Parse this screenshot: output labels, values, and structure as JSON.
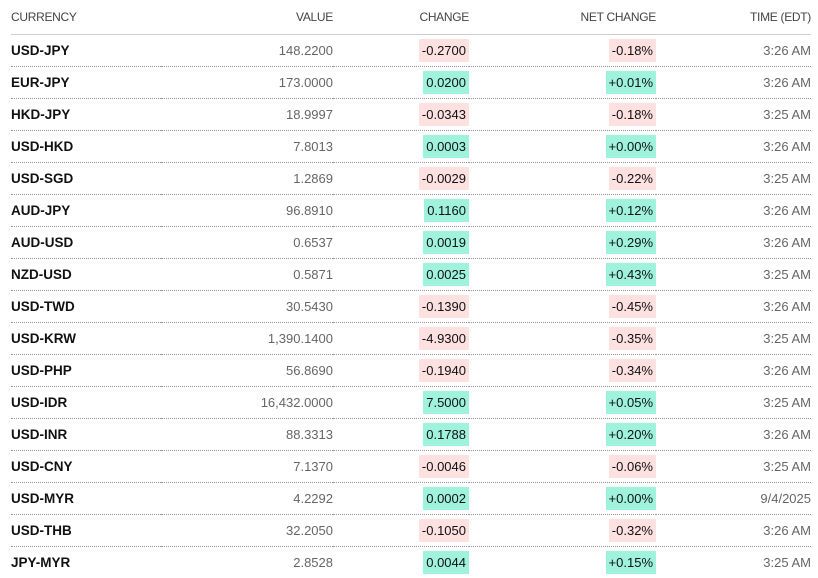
{
  "colors": {
    "positive": "#9ff3dc",
    "negative": "#fde0e0"
  },
  "headers": {
    "currency": "CURRENCY",
    "value": "VALUE",
    "change": "CHANGE",
    "net_change": "NET CHANGE",
    "time": "TIME (EDT)"
  },
  "rows": [
    {
      "currency": "USD-JPY",
      "value": "148.2200",
      "change": "-0.2700",
      "net_change": "-0.18%",
      "time": "3:26 AM",
      "dir": "down"
    },
    {
      "currency": "EUR-JPY",
      "value": "173.0000",
      "change": "0.0200",
      "net_change": "+0.01%",
      "time": "3:26 AM",
      "dir": "up"
    },
    {
      "currency": "HKD-JPY",
      "value": "18.9997",
      "change": "-0.0343",
      "net_change": "-0.18%",
      "time": "3:25 AM",
      "dir": "down"
    },
    {
      "currency": "USD-HKD",
      "value": "7.8013",
      "change": "0.0003",
      "net_change": "+0.00%",
      "time": "3:26 AM",
      "dir": "up"
    },
    {
      "currency": "USD-SGD",
      "value": "1.2869",
      "change": "-0.0029",
      "net_change": "-0.22%",
      "time": "3:25 AM",
      "dir": "down"
    },
    {
      "currency": "AUD-JPY",
      "value": "96.8910",
      "change": "0.1160",
      "net_change": "+0.12%",
      "time": "3:26 AM",
      "dir": "up"
    },
    {
      "currency": "AUD-USD",
      "value": "0.6537",
      "change": "0.0019",
      "net_change": "+0.29%",
      "time": "3:26 AM",
      "dir": "up"
    },
    {
      "currency": "NZD-USD",
      "value": "0.5871",
      "change": "0.0025",
      "net_change": "+0.43%",
      "time": "3:25 AM",
      "dir": "up"
    },
    {
      "currency": "USD-TWD",
      "value": "30.5430",
      "change": "-0.1390",
      "net_change": "-0.45%",
      "time": "3:26 AM",
      "dir": "down"
    },
    {
      "currency": "USD-KRW",
      "value": "1,390.1400",
      "change": "-4.9300",
      "net_change": "-0.35%",
      "time": "3:25 AM",
      "dir": "down"
    },
    {
      "currency": "USD-PHP",
      "value": "56.8690",
      "change": "-0.1940",
      "net_change": "-0.34%",
      "time": "3:26 AM",
      "dir": "down"
    },
    {
      "currency": "USD-IDR",
      "value": "16,432.0000",
      "change": "7.5000",
      "net_change": "+0.05%",
      "time": "3:25 AM",
      "dir": "up"
    },
    {
      "currency": "USD-INR",
      "value": "88.3313",
      "change": "0.1788",
      "net_change": "+0.20%",
      "time": "3:26 AM",
      "dir": "up"
    },
    {
      "currency": "USD-CNY",
      "value": "7.1370",
      "change": "-0.0046",
      "net_change": "-0.06%",
      "time": "3:25 AM",
      "dir": "down"
    },
    {
      "currency": "USD-MYR",
      "value": "4.2292",
      "change": "0.0002",
      "net_change": "+0.00%",
      "time": "9/4/2025",
      "dir": "up"
    },
    {
      "currency": "USD-THB",
      "value": "32.2050",
      "change": "-0.1050",
      "net_change": "-0.32%",
      "time": "3:26 AM",
      "dir": "down"
    },
    {
      "currency": "JPY-MYR",
      "value": "2.8528",
      "change": "0.0044",
      "net_change": "+0.15%",
      "time": "3:25 AM",
      "dir": "up"
    }
  ]
}
